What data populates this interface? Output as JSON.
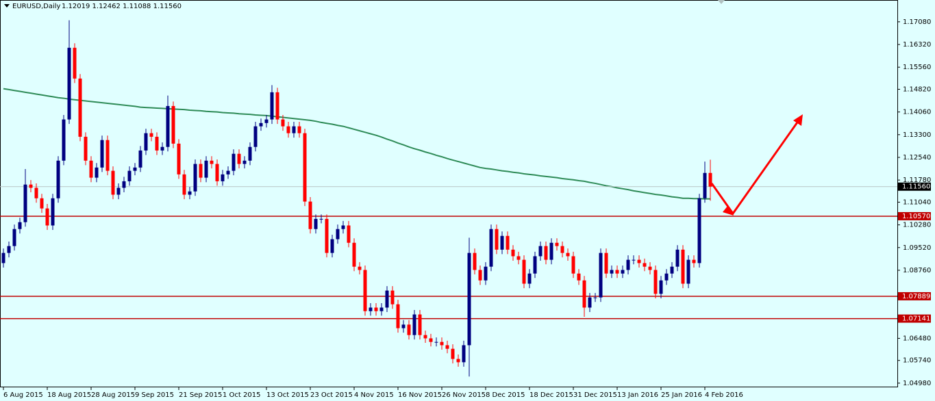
{
  "chart_data": {
    "type": "candlestick",
    "title": "EURUSD,Daily",
    "subtitle": "1.12019 1.12462 1.11088 1.11560",
    "categories": [
      "6 Aug 2015",
      null,
      null,
      null,
      null,
      null,
      null,
      null,
      "18 Aug 2015",
      null,
      null,
      null,
      null,
      null,
      null,
      null,
      "28 Aug 2015",
      null,
      null,
      null,
      null,
      null,
      null,
      null,
      "9 Sep 2015",
      null,
      null,
      null,
      null,
      null,
      null,
      null,
      "21 Sep 2015",
      null,
      null,
      null,
      null,
      null,
      null,
      null,
      "1 Oct 2015",
      null,
      null,
      null,
      null,
      null,
      null,
      null,
      "13 Oct 2015",
      null,
      null,
      null,
      null,
      null,
      null,
      null,
      "23 Oct 2015",
      null,
      null,
      null,
      null,
      null,
      null,
      null,
      "4 Nov 2015",
      null,
      null,
      null,
      null,
      null,
      null,
      null,
      "16 Nov 2015",
      null,
      null,
      null,
      null,
      null,
      null,
      null,
      "26 Nov 2015",
      null,
      null,
      null,
      null,
      null,
      null,
      null,
      "8 Dec 2015",
      null,
      null,
      null,
      null,
      null,
      null,
      null,
      "18 Dec 2015",
      null,
      null,
      null,
      null,
      null,
      null,
      null,
      "31 Dec 2015",
      null,
      null,
      null,
      null,
      null,
      null,
      null,
      "13 Jan 2016",
      null,
      null,
      null,
      null,
      null,
      null,
      null,
      "25 Jan 2016",
      null,
      null,
      null,
      null,
      null,
      null,
      null,
      "4 Feb 2016",
      null
    ],
    "open": [
      1.09,
      1.0934,
      1.0957,
      1.1014,
      1.1037,
      1.1163,
      1.1152,
      1.1117,
      1.1083,
      1.1026,
      1.1117,
      1.1243,
      1.1381,
      1.1621,
      1.1518,
      1.1323,
      1.1243,
      1.1186,
      1.122,
      1.1312,
      1.1209,
      1.1129,
      1.1152,
      1.1174,
      1.1209,
      1.122,
      1.1277,
      1.1335,
      1.1323,
      1.1277,
      1.1289,
      1.1426,
      1.13,
      1.1197,
      1.1129,
      1.114,
      1.1232,
      1.1186,
      1.1243,
      1.1232,
      1.1174,
      1.1197,
      1.1209,
      1.1266,
      1.1232,
      1.1243,
      1.1289,
      1.1358,
      1.1369,
      1.1381,
      1.1472,
      1.1381,
      1.1358,
      1.1335,
      1.1358,
      1.1335,
      1.1106,
      1.1014,
      1.1048,
      1.1048,
      1.0934,
      1.098,
      1.1014,
      1.1026,
      1.0968,
      1.0888,
      1.0877,
      1.0739,
      1.0751,
      1.0739,
      1.0751,
      1.0808,
      1.0762,
      1.0682,
      1.0694,
      1.0659,
      1.0728,
      1.0659,
      1.0648,
      1.0636,
      1.0636,
      1.0625,
      1.0613,
      1.0579,
      1.0568,
      1.0625,
      1.0934,
      1.0877,
      1.0842,
      1.0888,
      1.1014,
      1.0945,
      1.0991,
      1.0945,
      1.0923,
      1.0911,
      1.0831,
      1.0865,
      1.0923,
      1.0957,
      1.0911,
      1.0968,
      1.0957,
      1.0934,
      1.0923,
      1.0865,
      1.0842,
      1.0751,
      1.0785,
      1.0785,
      1.0934,
      1.0865,
      1.0877,
      1.0865,
      1.0877,
      1.0911,
      1.0911,
      1.09,
      1.0888,
      1.0877,
      1.0797,
      1.0842,
      1.0865,
      1.0888,
      1.0945,
      1.0831,
      1.0911,
      1.09,
      1.1117,
      1.12019
    ],
    "high": [
      1.0949,
      1.0972,
      1.1029,
      1.1052,
      1.1215,
      1.1178,
      1.1167,
      1.1132,
      1.1098,
      1.1132,
      1.1258,
      1.1396,
      1.1713,
      1.1636,
      1.1533,
      1.1338,
      1.1258,
      1.1235,
      1.1327,
      1.1327,
      1.1224,
      1.1167,
      1.1189,
      1.1224,
      1.1235,
      1.1292,
      1.135,
      1.135,
      1.1338,
      1.1304,
      1.1461,
      1.1441,
      1.1315,
      1.1212,
      1.1155,
      1.1247,
      1.1247,
      1.1258,
      1.1258,
      1.1247,
      1.1212,
      1.1224,
      1.1281,
      1.1281,
      1.1258,
      1.1304,
      1.1373,
      1.1384,
      1.1396,
      1.1496,
      1.1487,
      1.1396,
      1.1373,
      1.1373,
      1.1373,
      1.135,
      1.1121,
      1.1063,
      1.1063,
      1.1063,
      1.0995,
      1.1029,
      1.1041,
      1.1041,
      1.0983,
      1.0903,
      1.0892,
      1.0766,
      1.0766,
      1.0766,
      1.0823,
      1.0823,
      1.0777,
      1.0709,
      1.0709,
      1.0743,
      1.0743,
      1.0674,
      1.0663,
      1.0651,
      1.0651,
      1.064,
      1.0628,
      1.0594,
      1.064,
      1.0985,
      1.0949,
      1.0892,
      1.0903,
      1.1029,
      1.1029,
      1.1006,
      1.1006,
      1.096,
      1.0938,
      1.0926,
      1.088,
      1.0938,
      1.0972,
      1.0972,
      1.0983,
      1.0983,
      1.0972,
      1.0949,
      1.0938,
      1.088,
      1.0857,
      1.08,
      1.08,
      1.0949,
      1.0949,
      1.0892,
      1.0892,
      1.0892,
      1.0926,
      1.0926,
      1.0926,
      1.0915,
      1.0903,
      1.0892,
      1.0857,
      1.088,
      1.0903,
      1.096,
      1.096,
      1.0926,
      1.0926,
      1.1132,
      1.124,
      1.12462
    ],
    "low": [
      1.0885,
      1.0919,
      1.0942,
      1.0999,
      1.1022,
      1.1137,
      1.1102,
      1.1068,
      1.1011,
      1.1011,
      1.1102,
      1.1228,
      1.1366,
      1.1503,
      1.1308,
      1.1228,
      1.1171,
      1.1171,
      1.1205,
      1.1194,
      1.1114,
      1.1114,
      1.1137,
      1.1159,
      1.1194,
      1.1205,
      1.1262,
      1.1308,
      1.1262,
      1.1262,
      1.1274,
      1.1285,
      1.1182,
      1.1114,
      1.1114,
      1.1125,
      1.1171,
      1.1171,
      1.1217,
      1.1159,
      1.1159,
      1.1182,
      1.1194,
      1.1217,
      1.1217,
      1.1228,
      1.1274,
      1.1343,
      1.1354,
      1.1366,
      1.1366,
      1.1343,
      1.132,
      1.132,
      1.132,
      1.1091,
      1.0999,
      1.0999,
      1.1033,
      1.0919,
      1.0919,
      1.0965,
      1.0999,
      1.0953,
      1.0873,
      1.0862,
      1.0724,
      1.0724,
      1.0724,
      1.0724,
      1.0736,
      1.0747,
      1.0667,
      1.0667,
      1.0644,
      1.0644,
      1.0644,
      1.0633,
      1.0621,
      1.0621,
      1.061,
      1.0598,
      1.0564,
      1.0553,
      1.0553,
      1.052,
      1.0862,
      1.0827,
      1.0827,
      1.0873,
      1.093,
      1.093,
      1.093,
      1.0908,
      1.0896,
      1.0816,
      1.0816,
      1.085,
      1.0908,
      1.0896,
      1.0896,
      1.0942,
      1.0919,
      1.0908,
      1.085,
      1.0827,
      1.072,
      1.0736,
      1.077,
      1.077,
      1.085,
      1.085,
      1.085,
      1.085,
      1.0862,
      1.0896,
      1.0885,
      1.0873,
      1.0862,
      1.0782,
      1.0782,
      1.0827,
      1.085,
      1.0873,
      1.0816,
      1.0816,
      1.0885,
      1.0885,
      1.1102,
      1.11088
    ],
    "close": [
      1.0934,
      1.0957,
      1.1014,
      1.1037,
      1.1163,
      1.1152,
      1.1117,
      1.1083,
      1.1026,
      1.1117,
      1.1243,
      1.1381,
      1.1621,
      1.1518,
      1.1323,
      1.1243,
      1.1186,
      1.122,
      1.1312,
      1.1209,
      1.1129,
      1.1152,
      1.1174,
      1.1209,
      1.122,
      1.1277,
      1.1335,
      1.1323,
      1.1277,
      1.1289,
      1.1426,
      1.13,
      1.1197,
      1.1129,
      1.114,
      1.1232,
      1.1186,
      1.1243,
      1.1232,
      1.1174,
      1.1197,
      1.1209,
      1.1266,
      1.1232,
      1.1243,
      1.1289,
      1.1358,
      1.1369,
      1.1381,
      1.1472,
      1.1381,
      1.1358,
      1.1335,
      1.1358,
      1.1335,
      1.1106,
      1.1014,
      1.1048,
      1.1048,
      1.0934,
      1.098,
      1.1014,
      1.1026,
      1.0968,
      1.0888,
      1.0877,
      1.0739,
      1.0751,
      1.0739,
      1.0751,
      1.0808,
      1.0762,
      1.0682,
      1.0694,
      1.0659,
      1.0728,
      1.0659,
      1.0648,
      1.0636,
      1.0636,
      1.0625,
      1.0613,
      1.0579,
      1.0568,
      1.0625,
      1.0934,
      1.0877,
      1.0842,
      1.0888,
      1.1014,
      1.0945,
      1.0991,
      1.0945,
      1.0923,
      1.0911,
      1.0831,
      1.0865,
      1.0923,
      1.0957,
      1.0911,
      1.0968,
      1.0957,
      1.0934,
      1.0923,
      1.0865,
      1.0842,
      1.0751,
      1.0785,
      1.0785,
      1.0934,
      1.0865,
      1.0877,
      1.0865,
      1.0877,
      1.0911,
      1.0911,
      1.09,
      1.0888,
      1.0877,
      1.0797,
      1.0842,
      1.0865,
      1.0888,
      1.0945,
      1.0831,
      1.0911,
      1.09,
      1.1117,
      1.12019,
      1.1156
    ],
    "up_color": "#000080",
    "down_color": "#ff0000",
    "moving_average": {
      "color": "#2e8b57",
      "values": [
        1.1484,
        1.1481,
        1.1478,
        1.1475,
        1.1472,
        1.1469,
        1.1466,
        1.1463,
        1.146,
        1.1457,
        1.1454,
        1.1452,
        1.1449,
        1.1447,
        1.1445,
        1.1443,
        1.1441,
        1.1439,
        1.1437,
        1.1435,
        1.1433,
        1.1431,
        1.1429,
        1.1427,
        1.1425,
        1.1422,
        1.1421,
        1.142,
        1.1419,
        1.1418,
        1.1417,
        1.1416,
        1.1415,
        1.1414,
        1.1412,
        1.1411,
        1.141,
        1.1408,
        1.1407,
        1.1406,
        1.1404,
        1.1403,
        1.1402,
        1.14,
        1.1399,
        1.1398,
        1.1396,
        1.1395,
        1.1394,
        1.1392,
        1.139,
        1.1388,
        1.1386,
        1.1384,
        1.1382,
        1.138,
        1.1378,
        1.1375,
        1.1371,
        1.1368,
        1.1365,
        1.1361,
        1.1358,
        1.1353,
        1.1348,
        1.1343,
        1.1338,
        1.1333,
        1.1328,
        1.1322,
        1.1315,
        1.1309,
        1.1302,
        1.1296,
        1.1289,
        1.1283,
        1.1278,
        1.1272,
        1.1267,
        1.1261,
        1.1256,
        1.125,
        1.1245,
        1.124,
        1.1235,
        1.123,
        1.1225,
        1.122,
        1.1217,
        1.1215,
        1.1212,
        1.1209,
        1.1207,
        1.1204,
        1.1202,
        1.1199,
        1.1197,
        1.1195,
        1.1192,
        1.119,
        1.1188,
        1.1186,
        1.1183,
        1.1181,
        1.1179,
        1.1176,
        1.1174,
        1.117,
        1.1167,
        1.1163,
        1.1159,
        1.1156,
        1.1152,
        1.1149,
        1.1146,
        1.1142,
        1.1139,
        1.1136,
        1.1133,
        1.113,
        1.1128,
        1.1125,
        1.1122,
        1.112,
        1.1117,
        1.1117,
        1.1116,
        1.1116,
        1.1115,
        1.1115
      ]
    },
    "ylim": [
      1.0484,
      1.1781
    ],
    "yticks": [
      {
        "value": 1.1708,
        "label": "1.17080"
      },
      {
        "value": 1.1632,
        "label": "1.16320"
      },
      {
        "value": 1.1556,
        "label": "1.15560"
      },
      {
        "value": 1.1482,
        "label": "1.14820"
      },
      {
        "value": 1.1406,
        "label": "1.14060"
      },
      {
        "value": 1.133,
        "label": "1.13300"
      },
      {
        "value": 1.1254,
        "label": "1.12540"
      },
      {
        "value": 1.1178,
        "label": "1.11780"
      },
      {
        "value": 1.1104,
        "label": "1.11040"
      },
      {
        "value": 1.1028,
        "label": "1.10280"
      },
      {
        "value": 1.0952,
        "label": "1.09520"
      },
      {
        "value": 1.0876,
        "label": "1.08760"
      },
      {
        "value": 1.0648,
        "label": "1.06480"
      },
      {
        "value": 1.0574,
        "label": "1.05740"
      },
      {
        "value": 1.0498,
        "label": "1.04980"
      }
    ],
    "levels": [
      {
        "value": 1.1057,
        "label": "1.10570",
        "color": "#c00000"
      },
      {
        "value": 1.07889,
        "label": "1.07889",
        "color": "#c00000"
      },
      {
        "value": 1.07141,
        "label": "1.07141",
        "color": "#c00000"
      }
    ],
    "current_price": {
      "value": 1.1156,
      "label": "1.11560"
    }
  }
}
